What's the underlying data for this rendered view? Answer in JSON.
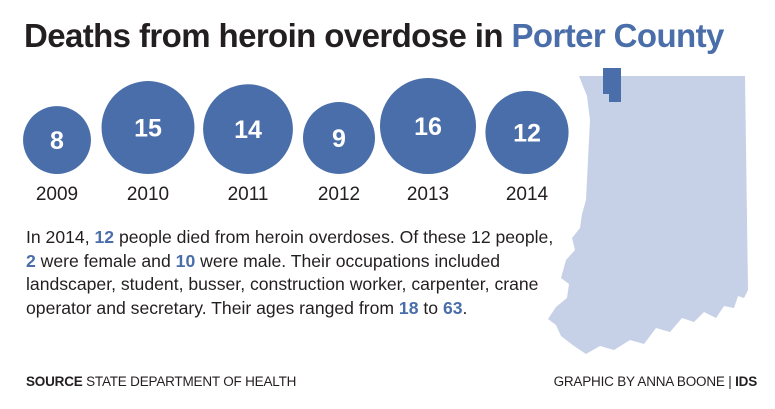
{
  "title": {
    "main": "Deaths from heroin overdose in",
    "highlight": "Porter County"
  },
  "chart_data": {
    "type": "bubble",
    "title": "Deaths from heroin overdose in Porter County",
    "categories": [
      "2009",
      "2010",
      "2011",
      "2012",
      "2013",
      "2014"
    ],
    "values": [
      8,
      15,
      14,
      9,
      16,
      12
    ]
  },
  "body_text": {
    "p1": "In 2014, ",
    "n_total": "12",
    "p2": " people died from heroin overdoses. Of these 12 people, ",
    "n_female": "2",
    "p3": " were female and ",
    "n_male": "10",
    "p4": " were male. Their occupations included landscaper, student, busser, construction worker, carpenter, crane operator and secretary. Their ages ranged from ",
    "n_min_age": "18",
    "p5": " to ",
    "n_max_age": "63",
    "p6": "."
  },
  "footer": {
    "source_label": "SOURCE",
    "source_text": " STATE DEPARTMENT OF HEALTH",
    "credit_text": "GRAPHIC BY ANNA BOONE | ",
    "credit_org": "IDS"
  },
  "colors": {
    "accent": "#4a6ea9",
    "map_fill": "#c6d0e6",
    "text": "#231f20"
  }
}
